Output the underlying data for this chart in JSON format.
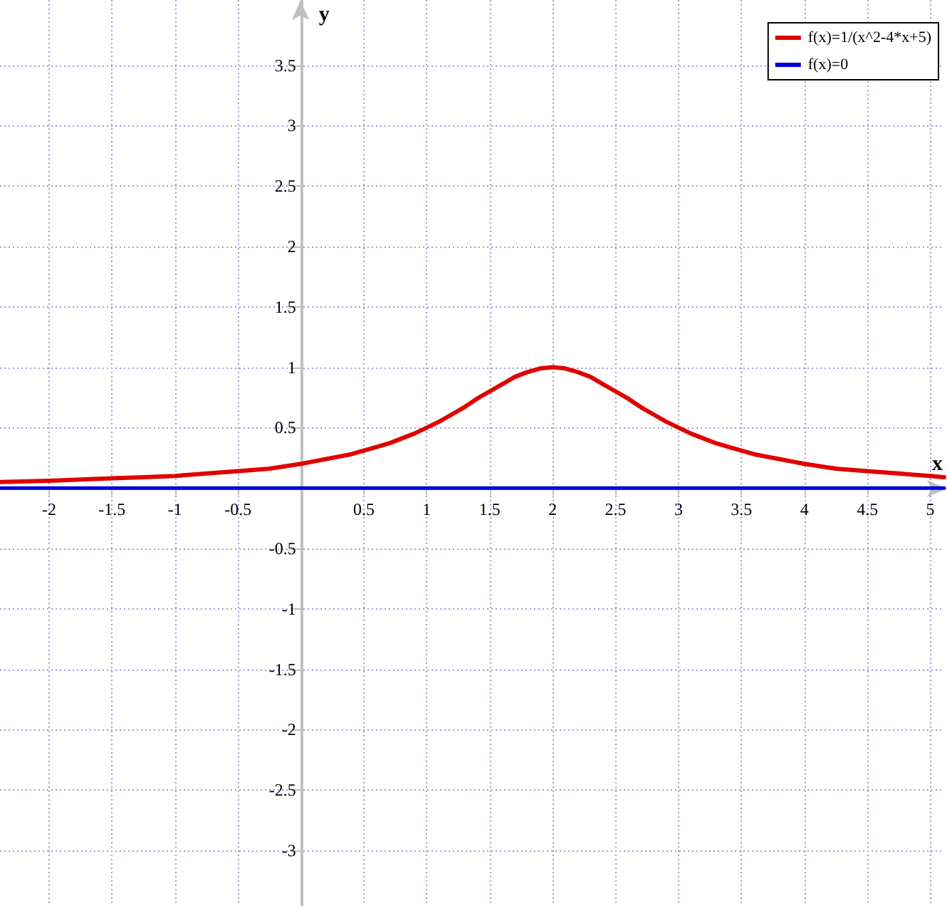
{
  "chart_data": {
    "type": "line",
    "xlabel": "x",
    "ylabel": "y",
    "x": [
      -2.39,
      -2,
      -1.75,
      -1.5,
      -1.25,
      -1,
      -0.75,
      -0.5,
      -0.25,
      0,
      0.1,
      0.2,
      0.3,
      0.4,
      0.5,
      0.6,
      0.7,
      0.8,
      0.9,
      1,
      1.1,
      1.2,
      1.3,
      1.4,
      1.5,
      1.6,
      1.7,
      1.8,
      1.9,
      2,
      2.1,
      2.2,
      2.3,
      2.4,
      2.5,
      2.6,
      2.7,
      2.8,
      2.9,
      3,
      3.1,
      3.2,
      3.3,
      3.4,
      3.5,
      3.6,
      3.7,
      3.8,
      3.9,
      4,
      4.25,
      4.5,
      4.75,
      5,
      5.11
    ],
    "series": [
      {
        "name": "f(x)=1/(x^2-4*x+5)",
        "color": "#e00000",
        "values": [
          0.05,
          0.06,
          0.07,
          0.08,
          0.09,
          0.1,
          0.12,
          0.14,
          0.16,
          0.2,
          0.22,
          0.24,
          0.26,
          0.28,
          0.31,
          0.34,
          0.37,
          0.41,
          0.45,
          0.5,
          0.55,
          0.61,
          0.67,
          0.74,
          0.8,
          0.86,
          0.92,
          0.96,
          0.99,
          1,
          0.99,
          0.96,
          0.92,
          0.86,
          0.8,
          0.74,
          0.67,
          0.61,
          0.55,
          0.5,
          0.45,
          0.41,
          0.37,
          0.34,
          0.31,
          0.28,
          0.26,
          0.24,
          0.22,
          0.2,
          0.16,
          0.14,
          0.12,
          0.1,
          0.09
        ]
      },
      {
        "name": "f(x)=0",
        "color": "#0000dd",
        "x": [
          -2.39,
          5.11
        ],
        "values": [
          0,
          0
        ]
      }
    ],
    "xlim": [
      -2.39,
      5.11
    ],
    "ylim": [
      -3.46,
      4.04
    ],
    "xticks": [
      -2,
      -1.5,
      -1,
      -0.5,
      0.5,
      1,
      1.5,
      2,
      2.5,
      3,
      3.5,
      4,
      4.5,
      5
    ],
    "yticks": [
      -3,
      -2.5,
      -2,
      -1.5,
      -1,
      -0.5,
      0.5,
      1,
      1.5,
      2,
      2.5,
      3,
      3.5
    ],
    "grid": true,
    "legend": "top right",
    "marker": "none",
    "line_style": "solid"
  }
}
